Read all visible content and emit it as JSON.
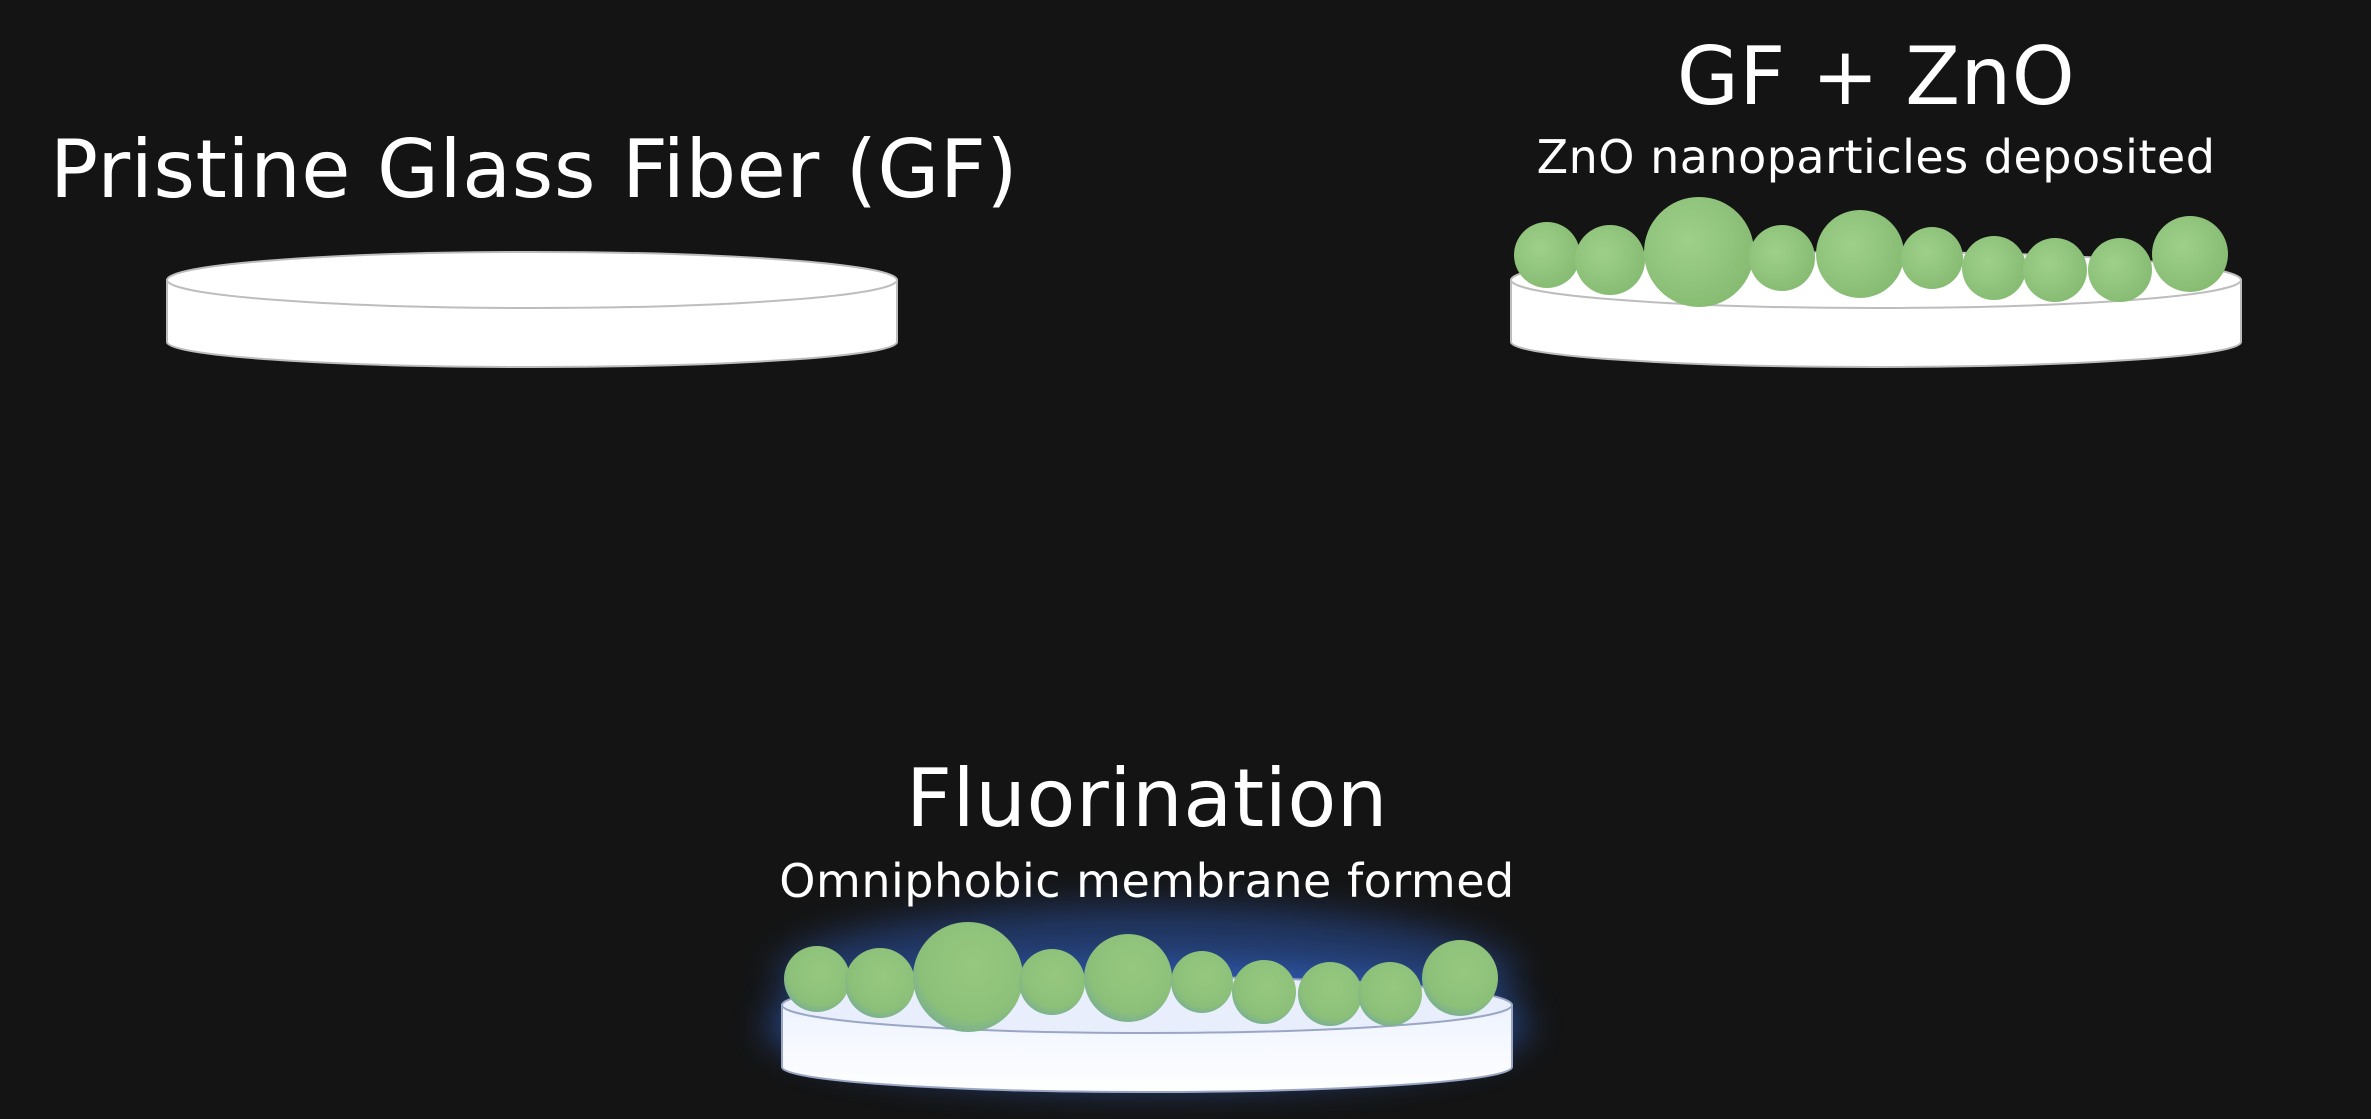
{
  "panels": {
    "pristine": {
      "title": "Pristine Glass Fiber (GF)"
    },
    "zno": {
      "title": "GF + ZnO",
      "subtitle": "ZnO nanoparticles deposited"
    },
    "fluorination": {
      "title": "Fluorination",
      "subtitle": "Omniphobic membrane formed"
    }
  },
  "colors": {
    "background": "#141414",
    "disk": "#ffffff",
    "disk_outline": "#bdbdbd",
    "particle": "#92c47d",
    "glow": "#3c7dff",
    "text": "#ffffff"
  }
}
